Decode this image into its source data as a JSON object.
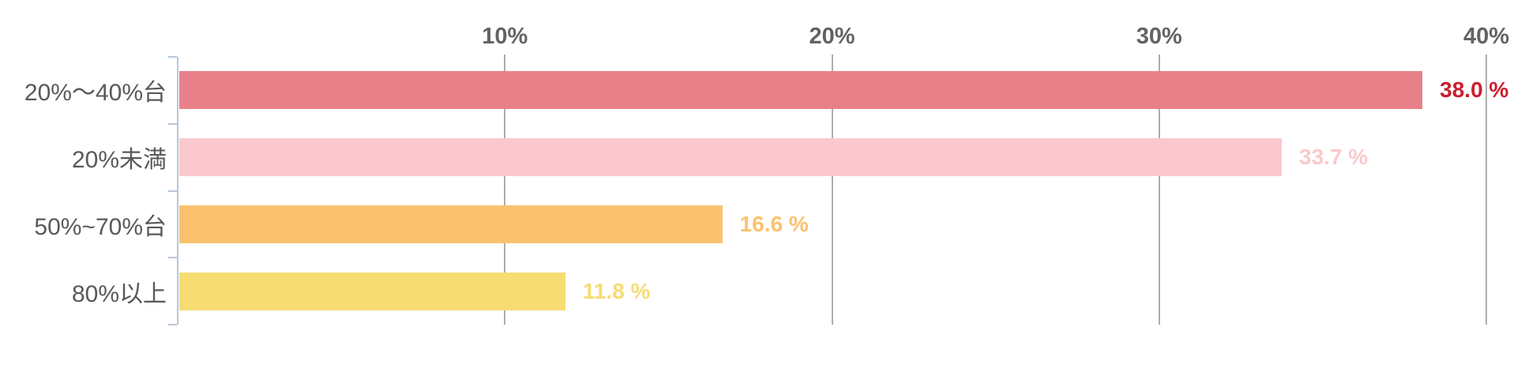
{
  "colors": {
    "grid": "#adadad",
    "axis": "#b7c7d7",
    "tick_label_text": "#636363",
    "category_text": "#595959"
  },
  "chart_data": {
    "type": "bar",
    "orientation": "horizontal",
    "title": "",
    "xlabel": "",
    "ylabel": "",
    "xlim": [
      0,
      40
    ],
    "grid": true,
    "legend": false,
    "categories": [
      "20%〜40%台",
      "20%未満",
      "50%~70%台",
      "80%以上"
    ],
    "values": [
      38.0,
      33.7,
      16.6,
      11.8
    ],
    "value_labels": [
      "38.0 %",
      "33.7 %",
      "16.6 %",
      "11.8 %"
    ],
    "bar_colors": [
      "#e8808a",
      "#fbc9cd",
      "#fac26f",
      "#f6dc73"
    ],
    "value_label_colors": [
      "#cc1e2d",
      "#fbc9cd",
      "#fac26f",
      "#f6dc73"
    ],
    "x_ticks": [
      "10%",
      "20%",
      "30%",
      "40%"
    ],
    "x_tick_values": [
      10,
      20,
      30,
      40
    ]
  }
}
